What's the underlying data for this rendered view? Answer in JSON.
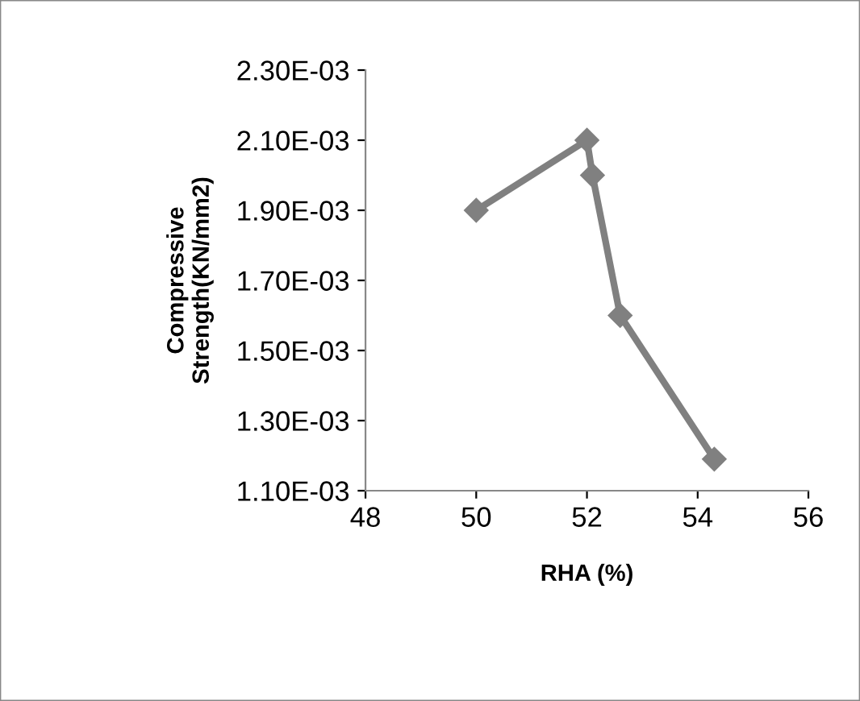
{
  "chart_data": {
    "type": "line",
    "xlabel": "RHA (%)",
    "ylabel": "Compressive\nStrength(KN/mm2)",
    "x": [
      50,
      52,
      52.1,
      52.6,
      54.3
    ],
    "series": [
      {
        "color": "#808080",
        "values": [
          0.0019,
          0.0021,
          0.002,
          0.0016,
          0.00119
        ]
      }
    ],
    "xlim": [
      48,
      56
    ],
    "xticks": [
      48,
      50,
      52,
      54,
      56
    ],
    "ylim": [
      0.0011,
      0.0023
    ],
    "yticks": [
      {
        "value": 0.0011,
        "label": "1.10E-03"
      },
      {
        "value": 0.0013,
        "label": "1.30E-03"
      },
      {
        "value": 0.0015,
        "label": "1.50E-03"
      },
      {
        "value": 0.0017,
        "label": "1.70E-03"
      },
      {
        "value": 0.0019,
        "label": "1.90E-03"
      },
      {
        "value": 0.0021,
        "label": "2.10E-03"
      },
      {
        "value": 0.0023,
        "label": "2.30E-03"
      }
    ],
    "marker": "diamond",
    "line_style": "solid",
    "grid": false,
    "legend": false
  }
}
